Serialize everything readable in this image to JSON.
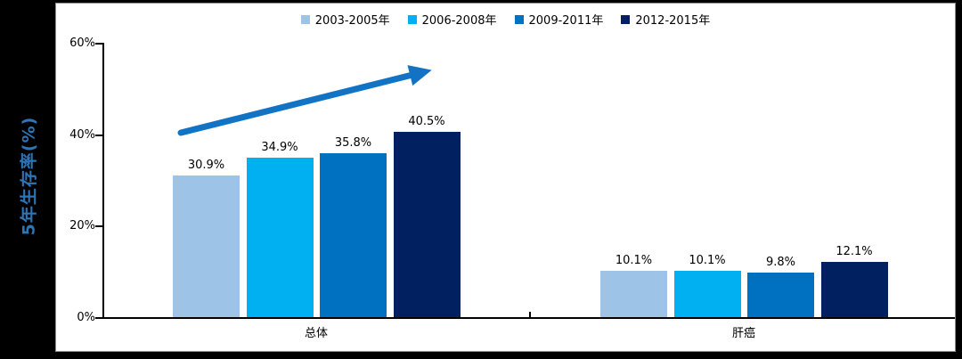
{
  "chart_data": {
    "type": "bar",
    "ylabel": "5年生存率(%)",
    "ylabel_color": "#2E75B6",
    "categories": [
      "总体",
      "肝癌"
    ],
    "series": [
      {
        "name": "2003-2005年",
        "color": "#9DC3E6",
        "values": [
          30.9,
          10.1
        ]
      },
      {
        "name": "2006-2008年",
        "color": "#00B0F0",
        "values": [
          34.9,
          10.1
        ]
      },
      {
        "name": "2009-2011年",
        "color": "#0070C0",
        "values": [
          35.8,
          9.8
        ]
      },
      {
        "name": "2012-2015年",
        "color": "#002060",
        "values": [
          40.5,
          12.1
        ]
      }
    ],
    "data_labels": [
      [
        "30.9%",
        "34.9%",
        "35.8%",
        "40.5%"
      ],
      [
        "10.1%",
        "10.1%",
        "9.8%",
        "12.1%"
      ]
    ],
    "y_ticks": [
      "0%",
      "20%",
      "40%",
      "60%"
    ],
    "ylim": [
      0,
      60
    ],
    "grid": false,
    "legend_position": "top",
    "annotations": [
      {
        "type": "arrow",
        "color": "#1272C4",
        "meaning": "rising trend of overall survival across periods"
      }
    ]
  },
  "colors": {
    "background": "#000000",
    "plot_background": "#FFFFFF",
    "axis": "#000000",
    "text": "#000000"
  }
}
